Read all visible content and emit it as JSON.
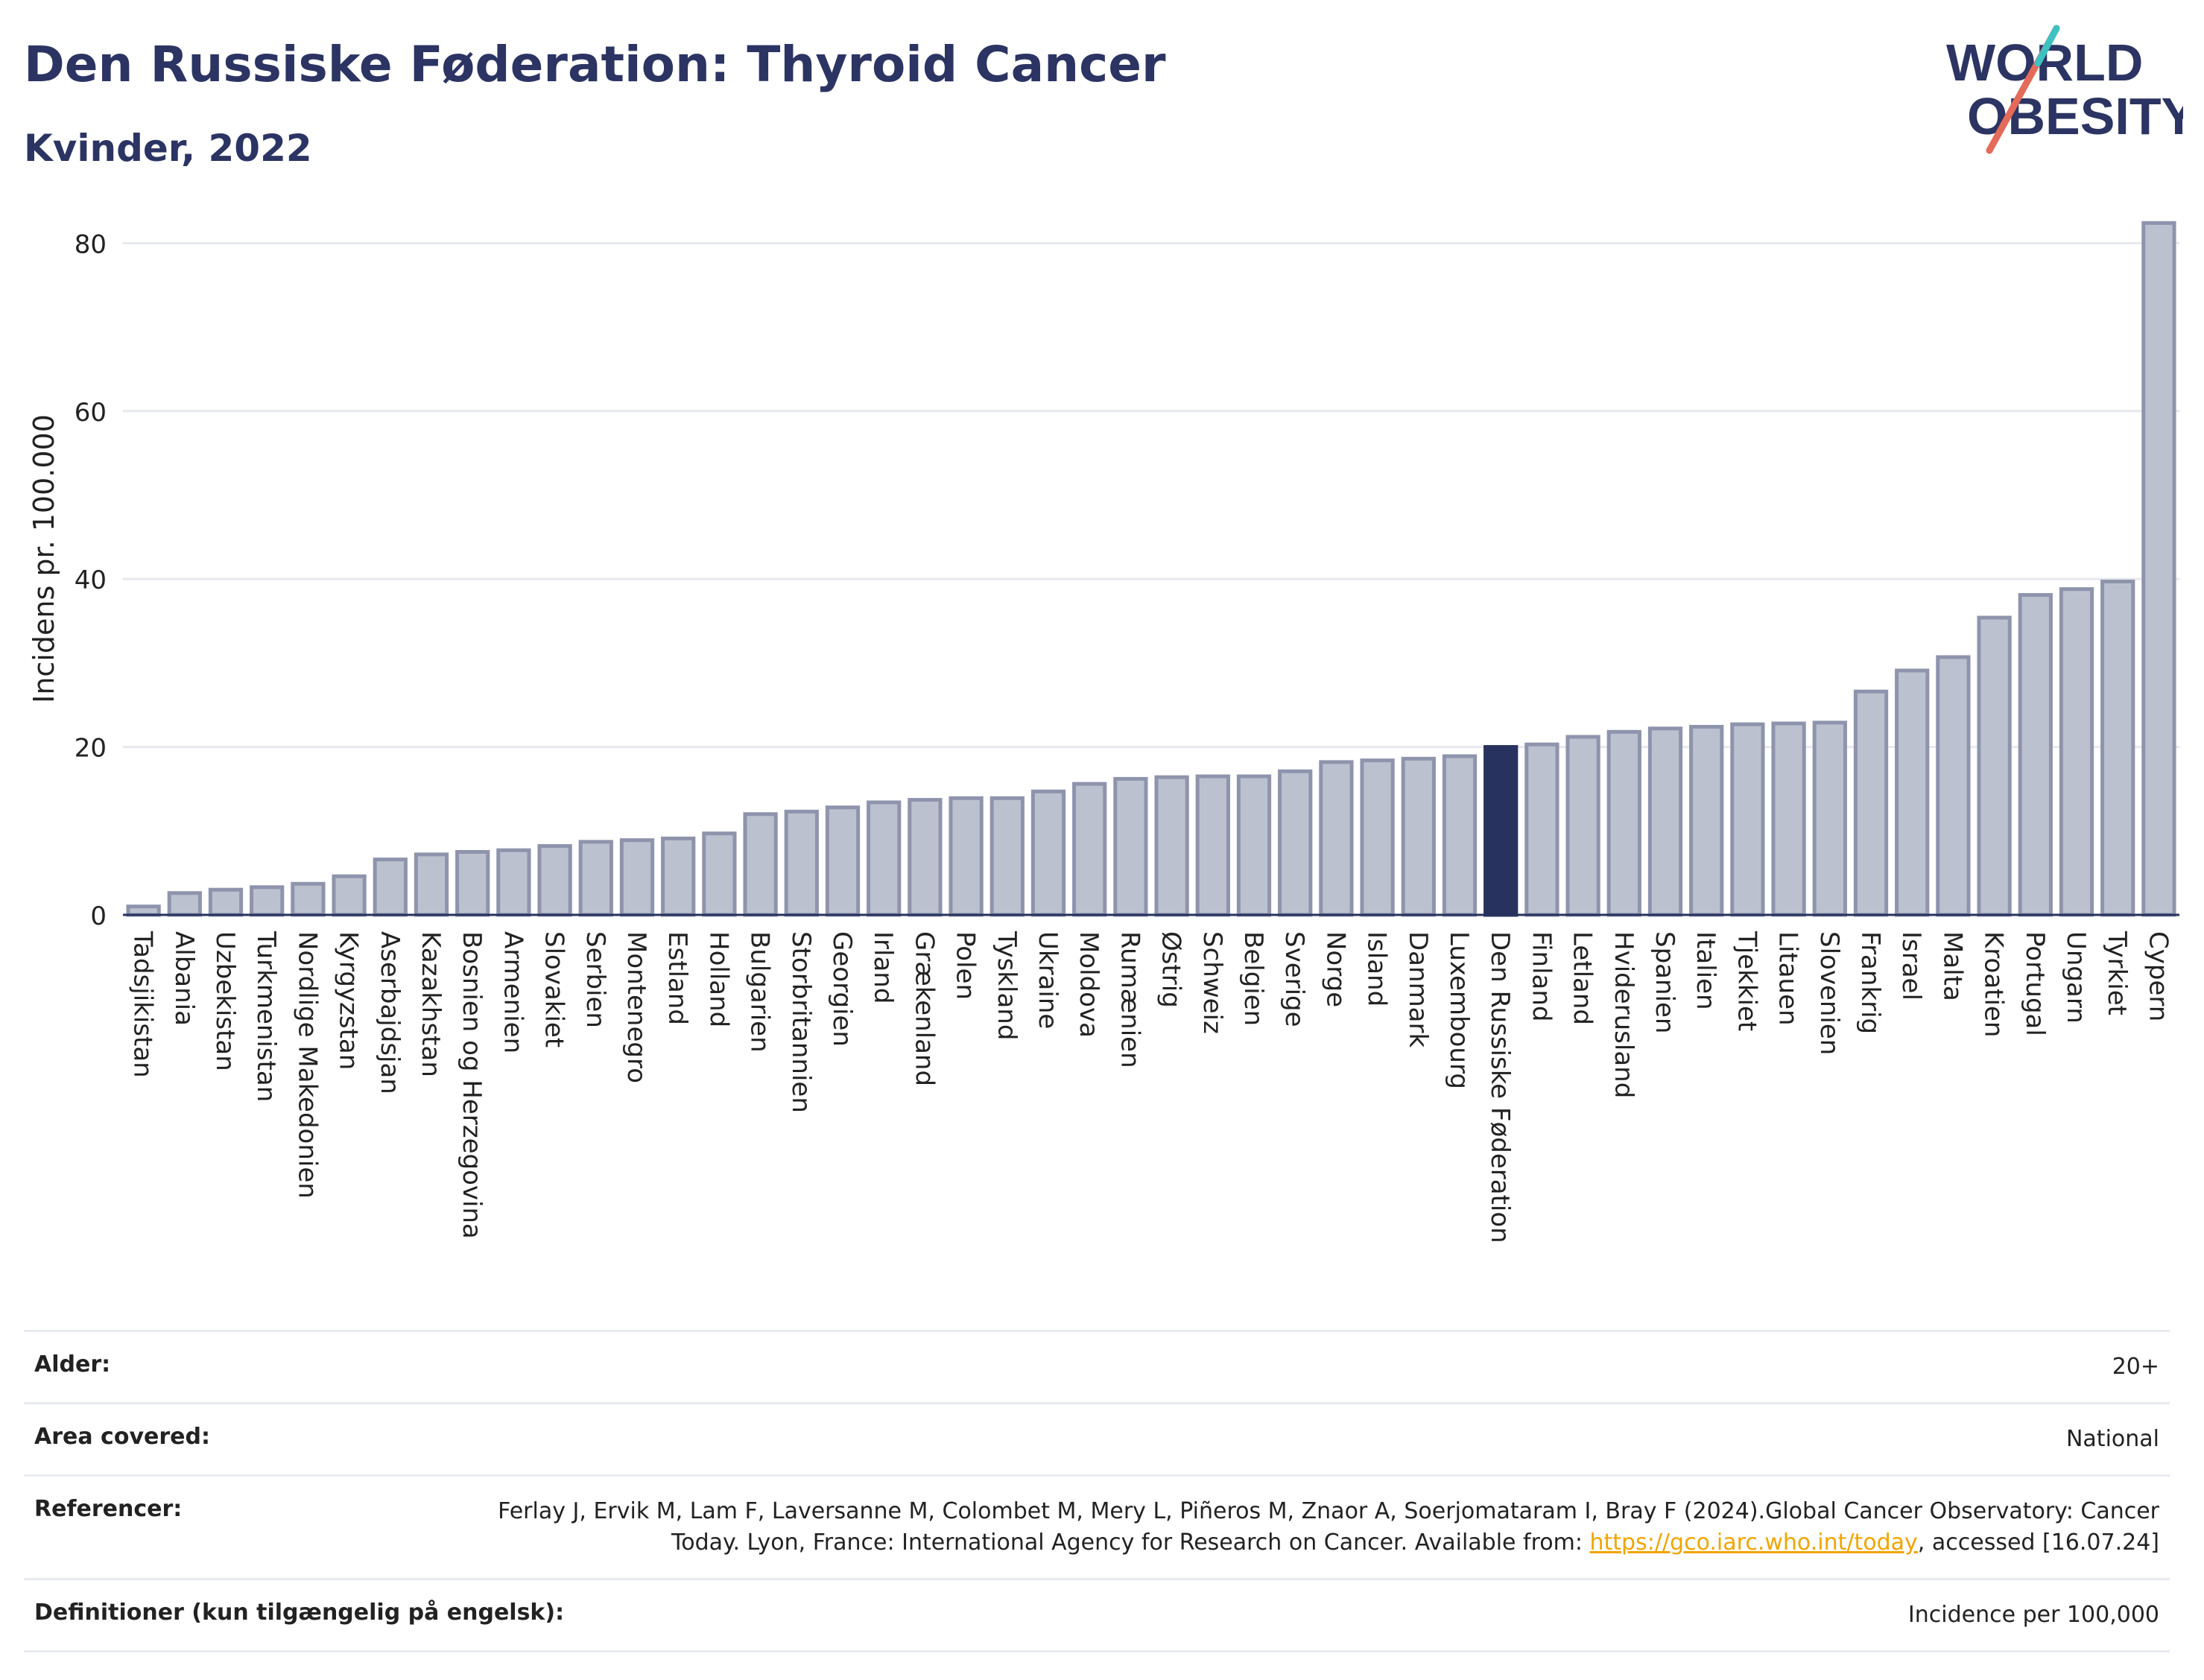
{
  "header": {
    "title": "Den Russiske Føderation: Thyroid Cancer",
    "subtitle": "Kvinder, 2022",
    "logo_line1": "WORLD",
    "logo_line2": "OBESITY"
  },
  "colors": {
    "title": "#2b3462",
    "bar_default": "#bcc1d0",
    "bar_default_border": "#8e94ac",
    "bar_highlight": "#27325e",
    "link": "#f0a500",
    "logo_slash": "#e46a5a",
    "logo_accent": "#3ec1c1"
  },
  "chart_data": {
    "type": "bar",
    "title": "Den Russiske Føderation: Thyroid Cancer",
    "subtitle": "Kvinder, 2022",
    "ylabel": "Incidens pr. 100.000",
    "xlabel": "",
    "ylim": [
      0,
      85
    ],
    "yticks": [
      0,
      20,
      40,
      60,
      80
    ],
    "grid": true,
    "highlight": "Den Russiske Føderation",
    "categories": [
      "Tadsjikistan",
      "Albania",
      "Uzbekistan",
      "Turkmenistan",
      "Nordlige Makedonien",
      "Kyrgyzstan",
      "Aserbajdsjan",
      "Kazakhstan",
      "Bosnien og Herzegovina",
      "Armenien",
      "Slovakiet",
      "Serbien",
      "Montenegro",
      "Estland",
      "Holland",
      "Bulgarien",
      "Storbritannien",
      "Georgien",
      "Irland",
      "Grækenland",
      "Polen",
      "Tyskland",
      "Ukraine",
      "Moldova",
      "Rumænien",
      "Østrig",
      "Schweiz",
      "Belgien",
      "Sverige",
      "Norge",
      "Island",
      "Danmark",
      "Luxembourg",
      "Den Russiske Føderation",
      "Finland",
      "Letland",
      "Hviderusland",
      "Spanien",
      "Italien",
      "Tjekkiet",
      "Litauen",
      "Slovenien",
      "Frankrig",
      "Israel",
      "Malta",
      "Kroatien",
      "Portugal",
      "Ungarn",
      "Tyrkiet",
      "Cypern"
    ],
    "values": [
      1.0,
      2.6,
      3.0,
      3.3,
      3.7,
      4.6,
      6.6,
      7.2,
      7.5,
      7.7,
      8.2,
      8.7,
      8.9,
      9.1,
      9.7,
      12.0,
      12.3,
      12.8,
      13.4,
      13.7,
      13.9,
      13.9,
      14.7,
      15.6,
      16.2,
      16.4,
      16.5,
      16.5,
      17.1,
      18.2,
      18.4,
      18.6,
      18.9,
      20.0,
      20.3,
      21.2,
      21.8,
      22.2,
      22.4,
      22.7,
      22.8,
      22.9,
      26.6,
      29.1,
      30.7,
      35.4,
      38.1,
      38.8,
      39.7,
      82.4
    ]
  },
  "info": {
    "rows": [
      {
        "label": "Alder:",
        "value": "20+"
      },
      {
        "label": "Area covered:",
        "value": "National"
      },
      {
        "label": "Referencer:",
        "value_pre": "Ferlay J, Ervik M, Lam F, Laversanne M, Colombet M, Mery L, Piñeros M, Znaor A, Soerjomataram I, Bray F (2024).Global Cancer Observatory: Cancer Today. Lyon, France: International Agency for Research on Cancer. Available from: ",
        "link": "https://gco.iarc.who.int/today",
        "value_post": ", accessed [16.07.24]"
      },
      {
        "label": "Definitioner (kun tilgængelig på engelsk):",
        "value": "Incidence per 100,000"
      }
    ]
  }
}
